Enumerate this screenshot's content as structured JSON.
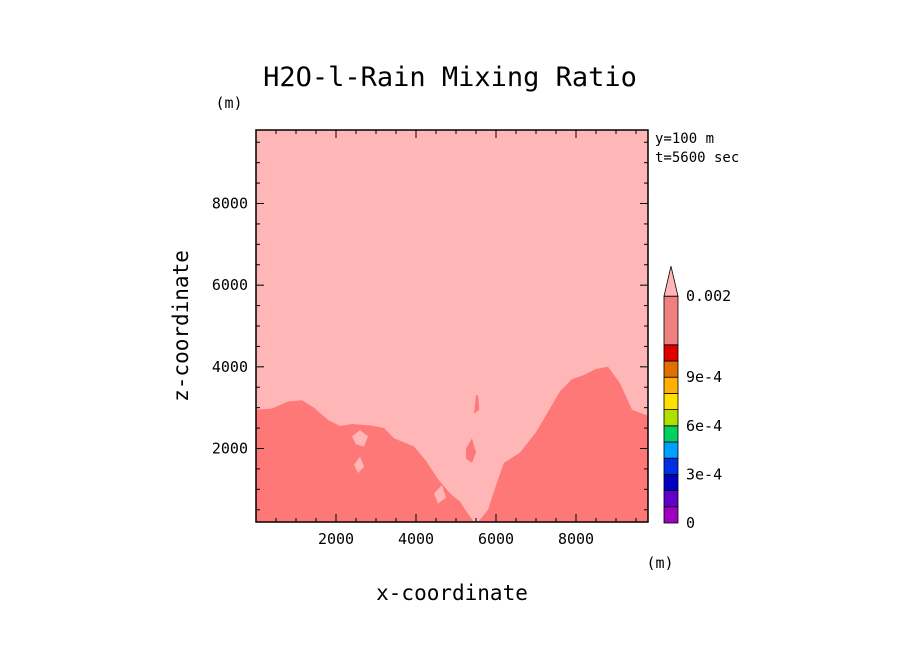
{
  "chart_data": {
    "type": "heatmap",
    "title": "H2O-l-Rain Mixing Ratio",
    "xlabel": "x-coordinate",
    "ylabel": "z-coordinate",
    "x_unit": "(m)",
    "y_unit": "(m)",
    "xlim": [
      0,
      9800
    ],
    "ylim": [
      200,
      9800
    ],
    "x_ticks": [
      2000,
      4000,
      6000,
      8000
    ],
    "y_ticks": [
      2000,
      4000,
      6000,
      8000
    ],
    "annotations": [
      "y=100 m",
      "t=5600 sec"
    ],
    "colorbar": {
      "levels": [
        0,
        0.0001,
        0.0002,
        0.0003,
        0.0004,
        0.0005,
        0.0006,
        0.0007,
        0.0008,
        0.0009,
        0.001,
        0.002
      ],
      "colors": [
        "#a000c0",
        "#6000c8",
        "#0000c0",
        "#0030e6",
        "#00a0ff",
        "#00d060",
        "#b0e000",
        "#ffe000",
        "#ffb000",
        "#e07000",
        "#e00000",
        "#f08080",
        "#ffb6b6"
      ],
      "tick_labels": [
        {
          "value": 0,
          "label": "0"
        },
        {
          "value": 0.0003,
          "label": "3e-4"
        },
        {
          "value": 0.0006,
          "label": "6e-4"
        },
        {
          "value": 0.0009,
          "label": "9e-4"
        },
        {
          "value": 0.002,
          "label": "0.002"
        }
      ],
      "extend": "max"
    },
    "field": {
      "background_color": "#ffb6b6",
      "high_region_color": "#ff7878",
      "high_region_min_value": 0.002,
      "high_region_outline": [
        [
          0,
          200
        ],
        [
          0,
          2950
        ],
        [
          400,
          2980
        ],
        [
          800,
          3150
        ],
        [
          1150,
          3180
        ],
        [
          1450,
          3000
        ],
        [
          1800,
          2700
        ],
        [
          2100,
          2550
        ],
        [
          2400,
          2600
        ],
        [
          2900,
          2560
        ],
        [
          3200,
          2500
        ],
        [
          3450,
          2250
        ],
        [
          3700,
          2150
        ],
        [
          3950,
          2050
        ],
        [
          4250,
          1700
        ],
        [
          4550,
          1250
        ],
        [
          4850,
          900
        ],
        [
          5100,
          700
        ],
        [
          5300,
          400
        ],
        [
          5450,
          200
        ],
        [
          5550,
          200
        ],
        [
          5800,
          500
        ],
        [
          6000,
          1100
        ],
        [
          6200,
          1650
        ],
        [
          6600,
          1900
        ],
        [
          7000,
          2400
        ],
        [
          7300,
          2900
        ],
        [
          7600,
          3400
        ],
        [
          7900,
          3700
        ],
        [
          8200,
          3800
        ],
        [
          8500,
          3950
        ],
        [
          8800,
          4000
        ],
        [
          9100,
          3600
        ],
        [
          9400,
          2950
        ],
        [
          9800,
          2800
        ],
        [
          9800,
          200
        ]
      ],
      "low_pockets": [
        [
          [
            2400,
            2300
          ],
          [
            2600,
            2450
          ],
          [
            2800,
            2300
          ],
          [
            2700,
            2050
          ],
          [
            2500,
            2100
          ]
        ],
        [
          [
            2450,
            1600
          ],
          [
            2600,
            1800
          ],
          [
            2700,
            1550
          ],
          [
            2550,
            1400
          ]
        ],
        [
          [
            5100,
            1300
          ],
          [
            5300,
            1600
          ],
          [
            5400,
            1250
          ],
          [
            5250,
            1050
          ]
        ],
        [
          [
            4450,
            900
          ],
          [
            4650,
            1100
          ],
          [
            4750,
            800
          ],
          [
            4550,
            650
          ]
        ]
      ],
      "high_blobs": [
        [
          [
            5250,
            2000
          ],
          [
            5400,
            2250
          ],
          [
            5500,
            1900
          ],
          [
            5400,
            1650
          ],
          [
            5250,
            1750
          ]
        ],
        [
          [
            5500,
            3300
          ],
          [
            5550,
            3300
          ],
          [
            5580,
            2950
          ],
          [
            5450,
            2850
          ]
        ]
      ]
    }
  }
}
